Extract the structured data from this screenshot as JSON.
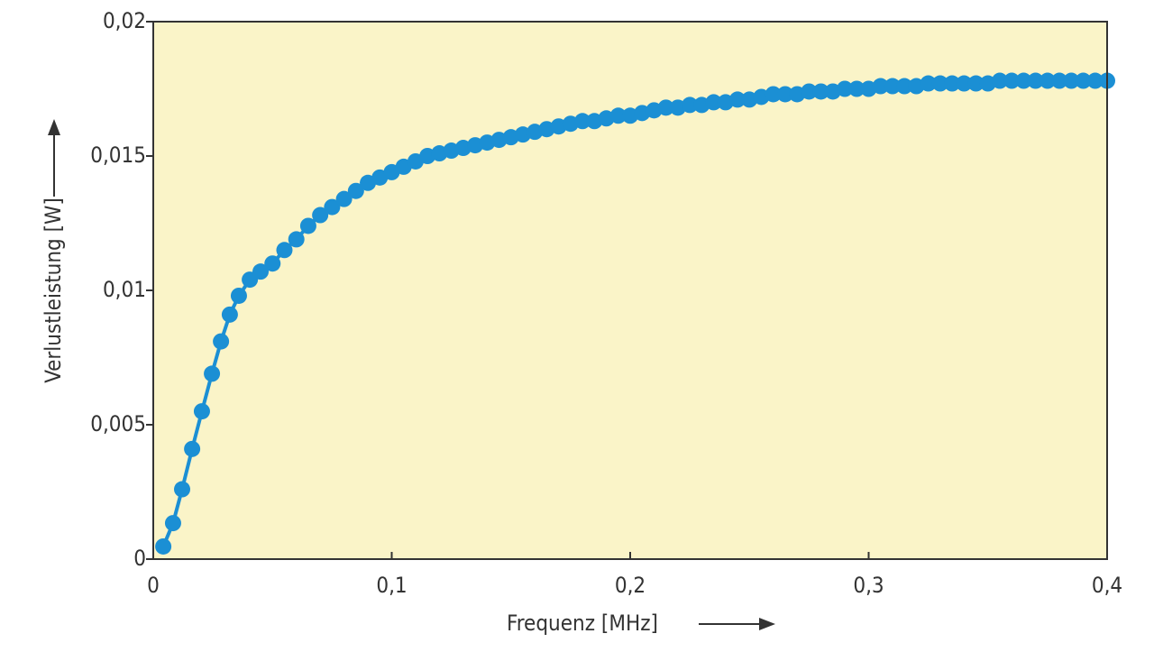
{
  "chart_data": {
    "type": "line",
    "x_label": "Frequenz [MHz]",
    "y_label": "Verlustleistung [W]",
    "x": [
      0.0042,
      0.0083,
      0.0121,
      0.0163,
      0.0204,
      0.0246,
      0.0284,
      0.0321,
      0.0359,
      0.0405,
      0.045,
      0.05,
      0.055,
      0.06,
      0.065,
      0.07,
      0.075,
      0.08,
      0.085,
      0.09,
      0.095,
      0.1,
      0.105,
      0.11,
      0.115,
      0.12,
      0.125,
      0.13,
      0.135,
      0.14,
      0.145,
      0.15,
      0.155,
      0.16,
      0.165,
      0.17,
      0.175,
      0.18,
      0.185,
      0.19,
      0.195,
      0.2,
      0.205,
      0.21,
      0.215,
      0.22,
      0.225,
      0.23,
      0.235,
      0.24,
      0.245,
      0.25,
      0.255,
      0.26,
      0.265,
      0.27,
      0.275,
      0.28,
      0.285,
      0.29,
      0.295,
      0.3,
      0.305,
      0.31,
      0.315,
      0.32,
      0.325,
      0.33,
      0.335,
      0.34,
      0.345,
      0.35,
      0.355,
      0.36,
      0.365,
      0.37,
      0.375,
      0.38,
      0.385,
      0.39,
      0.395,
      0.4
    ],
    "series": [
      {
        "name": "Verlustleistung",
        "color": "#1b8fd4",
        "values": [
          0.00047,
          0.00134,
          0.0026,
          0.0041,
          0.0055,
          0.0069,
          0.0081,
          0.0091,
          0.0098,
          0.0104,
          0.0107,
          0.011,
          0.0115,
          0.0119,
          0.0124,
          0.0128,
          0.0131,
          0.0134,
          0.0137,
          0.014,
          0.0142,
          0.0144,
          0.0146,
          0.0148,
          0.015,
          0.0151,
          0.0152,
          0.0153,
          0.0154,
          0.0155,
          0.0156,
          0.0157,
          0.0158,
          0.0159,
          0.016,
          0.0161,
          0.0162,
          0.0163,
          0.0163,
          0.0164,
          0.0165,
          0.0165,
          0.0166,
          0.0167,
          0.0168,
          0.0168,
          0.0169,
          0.0169,
          0.017,
          0.017,
          0.0171,
          0.0171,
          0.0172,
          0.0173,
          0.0173,
          0.0173,
          0.0174,
          0.0174,
          0.0174,
          0.0175,
          0.0175,
          0.0175,
          0.0176,
          0.0176,
          0.0176,
          0.0176,
          0.0177,
          0.0177,
          0.0177,
          0.0177,
          0.0177,
          0.0177,
          0.0178,
          0.0178,
          0.0178,
          0.0178,
          0.0178,
          0.0178,
          0.0178,
          0.0178,
          0.0178,
          0.0178
        ]
      }
    ],
    "xlim": [
      0,
      0.4
    ],
    "xticks": [
      0,
      {
        "value": 0.1,
        "label": "0,1"
      },
      {
        "value": 0.2,
        "label": "0,2"
      },
      {
        "value": 0.3,
        "label": "0,3"
      },
      {
        "value": 0.4,
        "label": "0,4"
      }
    ],
    "ylim": [
      0,
      0.02
    ],
    "yticks": [
      0,
      {
        "value": 0.005,
        "label": "0,005"
      },
      {
        "value": 0.01,
        "label": "0,01"
      },
      {
        "value": 0.015,
        "label": "0,015"
      },
      {
        "value": 0.02,
        "label": "0,02"
      }
    ],
    "background": "#faf4c8",
    "grid": false
  }
}
